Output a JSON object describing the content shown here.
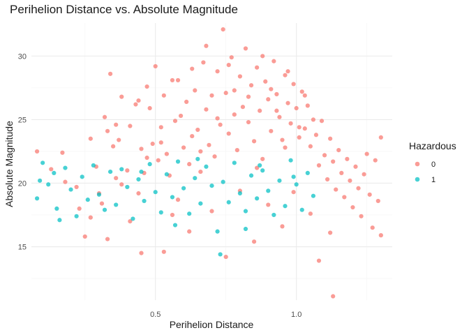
{
  "chart_data": {
    "type": "scatter",
    "title": "Perihelion Distance vs. Absolute Magnitude",
    "xlabel": "Perihelion Distance",
    "ylabel": "Absolute Magnitude",
    "xlim": [
      0.06,
      1.34
    ],
    "ylim": [
      10.8,
      32.6
    ],
    "x_ticks": [
      0.5,
      1.0
    ],
    "x_tick_labels": [
      "0.5",
      "1.0"
    ],
    "x_minor_ticks": [
      0.25,
      0.75,
      1.25
    ],
    "y_ticks": [
      15,
      20,
      25,
      30
    ],
    "y_tick_labels": [
      "15",
      "20",
      "25",
      "30"
    ],
    "y_minor_ticks": [
      12.5,
      17.5,
      22.5,
      27.5
    ],
    "grid": true,
    "legend": {
      "title": "Hazardous",
      "position": "right"
    },
    "series": [
      {
        "name": "0",
        "color": "#F8766D",
        "points": [
          [
            0.08,
            22.5
          ],
          [
            0.13,
            21.1
          ],
          [
            0.17,
            22.4
          ],
          [
            0.18,
            20.1
          ],
          [
            0.22,
            19.7
          ],
          [
            0.23,
            18.0
          ],
          [
            0.25,
            15.8
          ],
          [
            0.27,
            23.5
          ],
          [
            0.29,
            21.3
          ],
          [
            0.3,
            19.2
          ],
          [
            0.31,
            18.4
          ],
          [
            0.32,
            25.2
          ],
          [
            0.33,
            24.1
          ],
          [
            0.34,
            28.6
          ],
          [
            0.35,
            22.9
          ],
          [
            0.36,
            20.4
          ],
          [
            0.37,
            23.4
          ],
          [
            0.38,
            26.8
          ],
          [
            0.4,
            21.0
          ],
          [
            0.41,
            24.5
          ],
          [
            0.43,
            26.2
          ],
          [
            0.44,
            19.2
          ],
          [
            0.45,
            22.7
          ],
          [
            0.46,
            20.8
          ],
          [
            0.47,
            27.6
          ],
          [
            0.48,
            25.9
          ],
          [
            0.49,
            23.1
          ],
          [
            0.5,
            29.2
          ],
          [
            0.51,
            21.8
          ],
          [
            0.52,
            24.4
          ],
          [
            0.53,
            26.9
          ],
          [
            0.54,
            22.3
          ],
          [
            0.55,
            20.6
          ],
          [
            0.56,
            17.5
          ],
          [
            0.57,
            24.9
          ],
          [
            0.58,
            28.1
          ],
          [
            0.59,
            25.3
          ],
          [
            0.6,
            22.8
          ],
          [
            0.61,
            26.4
          ],
          [
            0.62,
            21.5
          ],
          [
            0.63,
            23.7
          ],
          [
            0.64,
            27.3
          ],
          [
            0.65,
            24.2
          ],
          [
            0.66,
            20.9
          ],
          [
            0.67,
            29.5
          ],
          [
            0.68,
            25.8
          ],
          [
            0.69,
            23.0
          ],
          [
            0.7,
            26.9
          ],
          [
            0.71,
            22.1
          ],
          [
            0.72,
            28.8
          ],
          [
            0.73,
            24.6
          ],
          [
            0.74,
            32.1
          ],
          [
            0.75,
            27.1
          ],
          [
            0.76,
            23.9
          ],
          [
            0.77,
            29.9
          ],
          [
            0.78,
            25.4
          ],
          [
            0.79,
            22.6
          ],
          [
            0.8,
            28.4
          ],
          [
            0.81,
            26.0
          ],
          [
            0.82,
            30.6
          ],
          [
            0.83,
            24.8
          ],
          [
            0.84,
            27.7
          ],
          [
            0.85,
            23.3
          ],
          [
            0.86,
            29.1
          ],
          [
            0.87,
            25.7
          ],
          [
            0.88,
            21.9
          ],
          [
            0.89,
            28.0
          ],
          [
            0.9,
            26.6
          ],
          [
            0.91,
            24.1
          ],
          [
            0.92,
            29.6
          ],
          [
            0.93,
            27.0
          ],
          [
            0.94,
            25.2
          ],
          [
            0.95,
            23.4
          ],
          [
            0.96,
            28.5
          ],
          [
            0.97,
            26.3
          ],
          [
            0.98,
            24.7
          ],
          [
            0.99,
            27.8
          ],
          [
            1.0,
            25.9
          ],
          [
            1.01,
            23.6
          ],
          [
            1.02,
            27.2
          ],
          [
            1.03,
            24.3
          ],
          [
            1.04,
            26.1
          ],
          [
            1.05,
            22.9
          ],
          [
            1.06,
            25.0
          ],
          [
            1.07,
            23.8
          ],
          [
            1.08,
            21.4
          ],
          [
            1.09,
            24.9
          ],
          [
            1.1,
            22.2
          ],
          [
            1.11,
            20.3
          ],
          [
            1.12,
            23.5
          ],
          [
            1.13,
            21.7
          ],
          [
            1.14,
            19.5
          ],
          [
            1.15,
            22.6
          ],
          [
            1.16,
            20.8
          ],
          [
            1.17,
            18.9
          ],
          [
            1.18,
            21.9
          ],
          [
            1.19,
            20.2
          ],
          [
            1.2,
            18.1
          ],
          [
            1.21,
            21.3
          ],
          [
            1.22,
            19.6
          ],
          [
            1.23,
            17.4
          ],
          [
            1.24,
            20.7
          ],
          [
            1.25,
            22.3
          ],
          [
            1.26,
            19.1
          ],
          [
            1.27,
            16.5
          ],
          [
            1.28,
            21.8
          ],
          [
            1.29,
            18.6
          ],
          [
            1.3,
            23.6
          ],
          [
            1.3,
            15.9
          ],
          [
            1.13,
            11.1
          ],
          [
            1.08,
            13.9
          ],
          [
            0.75,
            14.2
          ],
          [
            0.53,
            14.6
          ],
          [
            0.45,
            14.5
          ],
          [
            0.62,
            16.2
          ],
          [
            0.85,
            15.4
          ],
          [
            0.95,
            16.6
          ],
          [
            0.41,
            17.0
          ],
          [
            0.33,
            15.6
          ],
          [
            0.27,
            17.3
          ],
          [
            0.7,
            17.8
          ],
          [
            0.9,
            18.3
          ],
          [
            1.05,
            17.6
          ],
          [
            1.12,
            16.1
          ],
          [
            0.58,
            18.7
          ],
          [
            0.8,
            19.4
          ],
          [
            0.38,
            19.9
          ],
          [
            0.99,
            19.3
          ],
          [
            0.47,
            22.0
          ],
          [
            0.66,
            22.5
          ],
          [
            0.86,
            21.2
          ],
          [
            0.96,
            22.8
          ],
          [
            1.01,
            24.4
          ],
          [
            0.93,
            25.7
          ],
          [
            0.78,
            27.3
          ],
          [
            0.88,
            30.0
          ],
          [
            0.68,
            30.8
          ],
          [
            0.63,
            29.0
          ],
          [
            0.56,
            28.1
          ],
          [
            0.44,
            26.5
          ],
          [
            0.36,
            24.6
          ],
          [
            0.52,
            23.2
          ],
          [
            0.72,
            25.1
          ],
          [
            0.83,
            26.8
          ],
          [
            0.97,
            28.8
          ],
          [
            1.03,
            26.9
          ],
          [
            0.91,
            27.4
          ],
          [
            0.76,
            29.3
          ]
        ]
      },
      {
        "name": "1",
        "color": "#00BFC4",
        "points": [
          [
            0.08,
            18.8
          ],
          [
            0.09,
            20.2
          ],
          [
            0.1,
            21.6
          ],
          [
            0.12,
            19.9
          ],
          [
            0.14,
            20.8
          ],
          [
            0.15,
            18.0
          ],
          [
            0.16,
            17.1
          ],
          [
            0.18,
            21.2
          ],
          [
            0.2,
            19.5
          ],
          [
            0.22,
            17.4
          ],
          [
            0.24,
            20.5
          ],
          [
            0.26,
            18.7
          ],
          [
            0.28,
            21.4
          ],
          [
            0.3,
            19.1
          ],
          [
            0.32,
            17.9
          ],
          [
            0.34,
            20.9
          ],
          [
            0.36,
            18.3
          ],
          [
            0.38,
            21.1
          ],
          [
            0.4,
            19.7
          ],
          [
            0.42,
            17.2
          ],
          [
            0.44,
            20.3
          ],
          [
            0.46,
            18.6
          ],
          [
            0.48,
            21.5
          ],
          [
            0.5,
            19.3
          ],
          [
            0.52,
            17.7
          ],
          [
            0.54,
            20.7
          ],
          [
            0.56,
            18.9
          ],
          [
            0.58,
            21.7
          ],
          [
            0.6,
            19.6
          ],
          [
            0.62,
            17.6
          ],
          [
            0.64,
            20.4
          ],
          [
            0.66,
            18.4
          ],
          [
            0.68,
            21.3
          ],
          [
            0.7,
            19.8
          ],
          [
            0.72,
            16.2
          ],
          [
            0.73,
            14.4
          ],
          [
            0.74,
            20.1
          ],
          [
            0.76,
            18.5
          ],
          [
            0.78,
            21.6
          ],
          [
            0.8,
            19.2
          ],
          [
            0.82,
            17.8
          ],
          [
            0.84,
            20.6
          ],
          [
            0.86,
            18.8
          ],
          [
            0.88,
            21.0
          ],
          [
            0.9,
            19.4
          ],
          [
            0.92,
            17.5
          ],
          [
            0.94,
            20.2
          ],
          [
            0.96,
            18.2
          ],
          [
            0.98,
            21.8
          ],
          [
            1.0,
            19.9
          ],
          [
            1.02,
            17.9
          ],
          [
            1.04,
            20.8
          ],
          [
            1.06,
            19.0
          ],
          [
            0.57,
            16.7
          ],
          [
            0.82,
            16.4
          ],
          [
            0.45,
            20.9
          ],
          [
            0.65,
            21.9
          ],
          [
            0.87,
            21.4
          ],
          [
            0.99,
            20.5
          ]
        ]
      }
    ]
  }
}
